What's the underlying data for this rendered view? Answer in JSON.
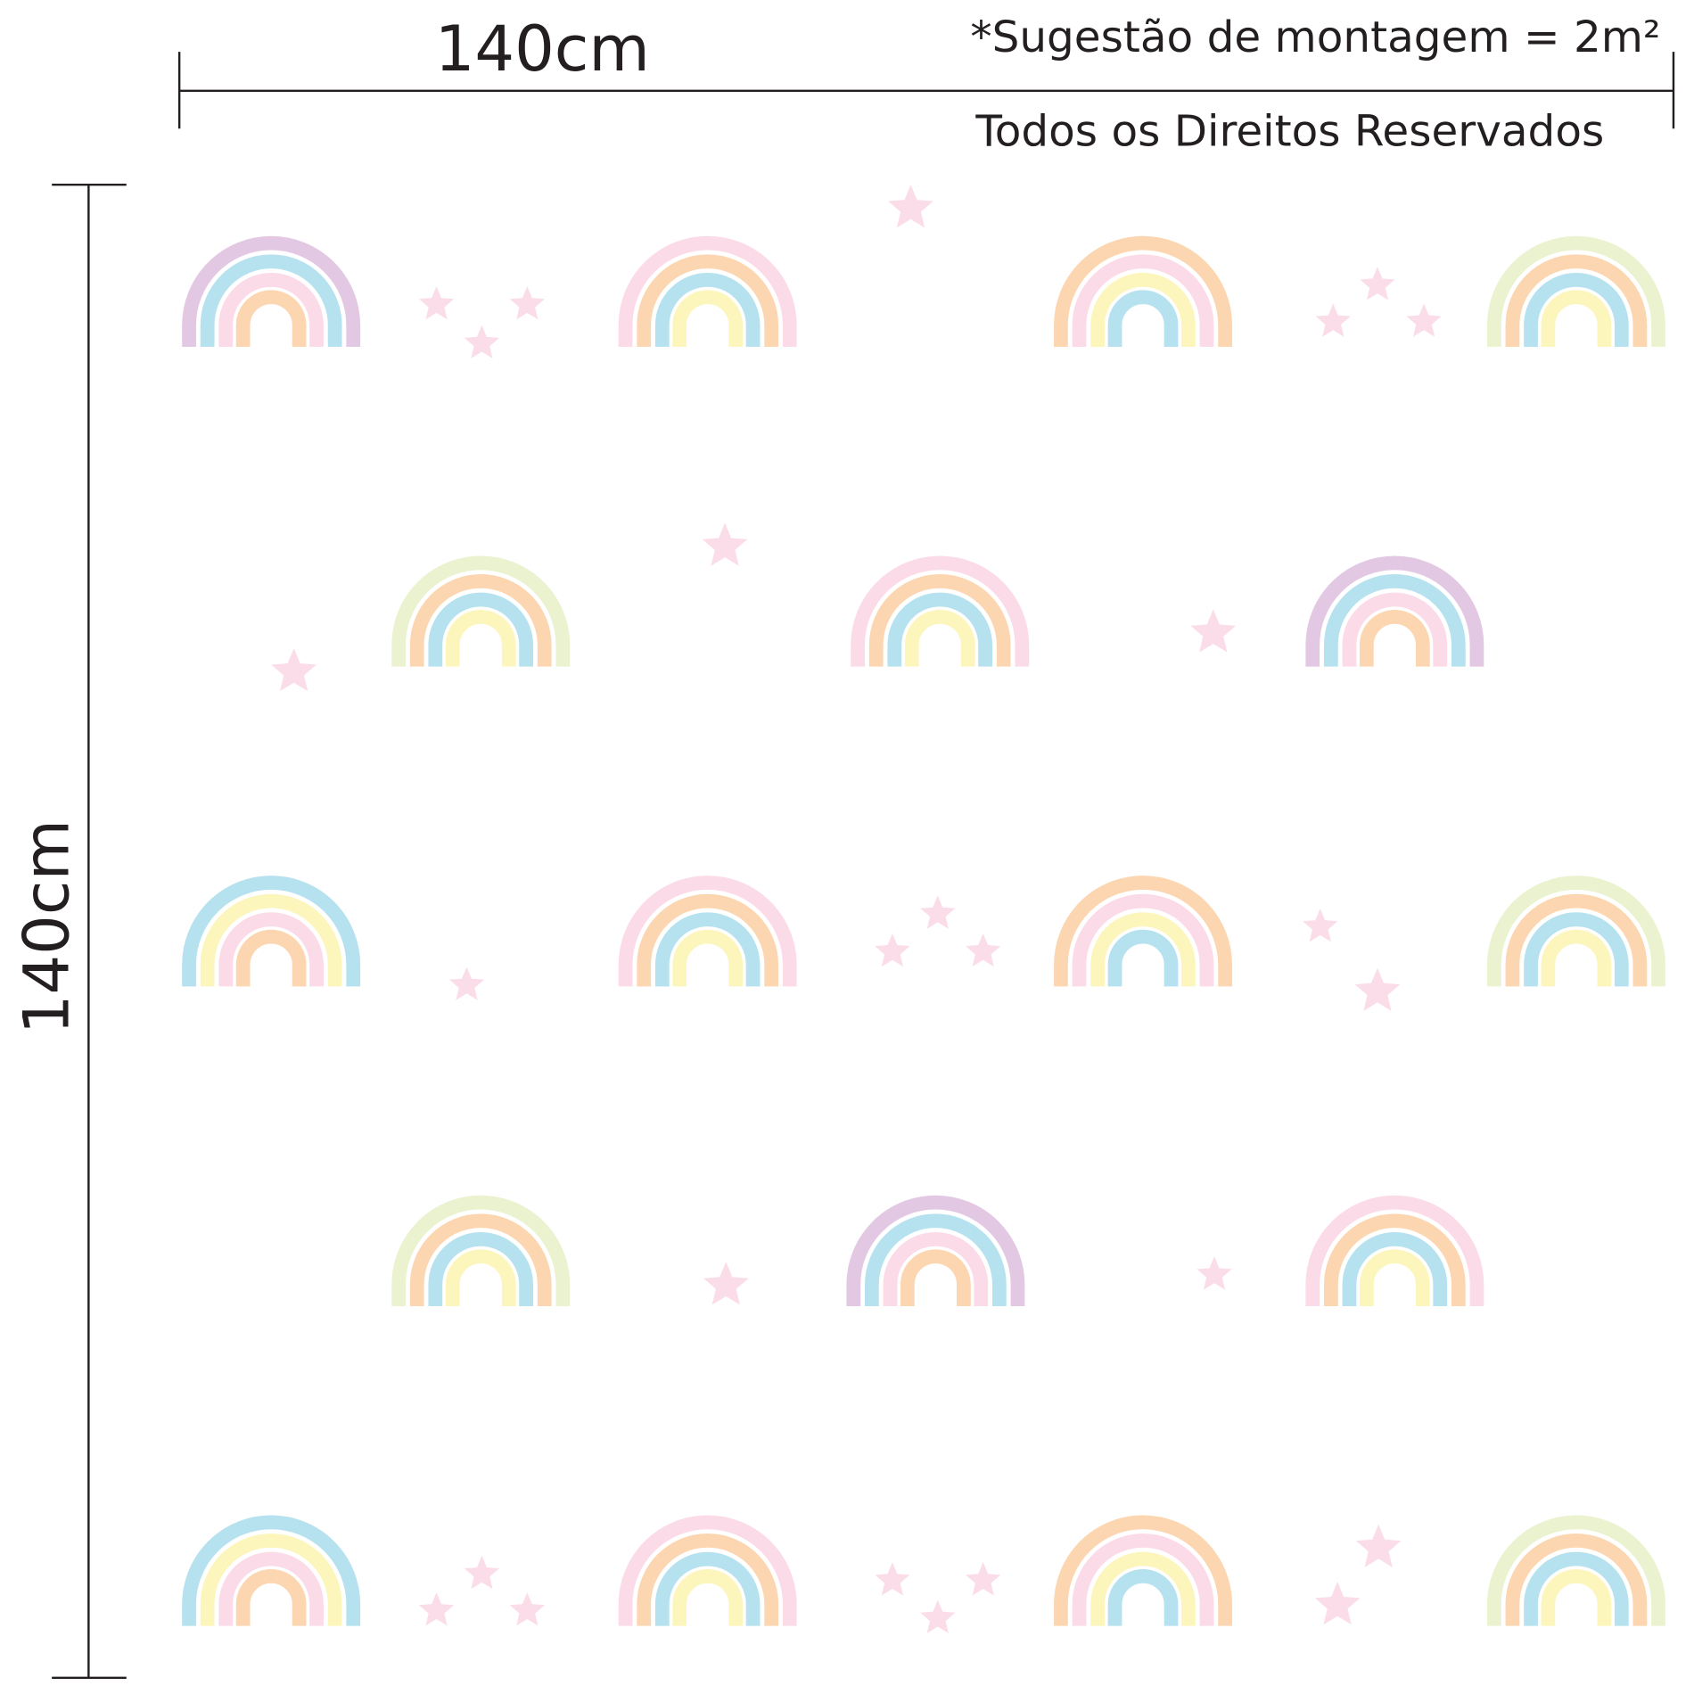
{
  "dimensions": {
    "width_label": "140cm",
    "height_label": "140cm"
  },
  "notes": {
    "suggestion": "*Sugestão de montagem = 2m²",
    "rights": "Todos os Direitos Reservados"
  }
}
